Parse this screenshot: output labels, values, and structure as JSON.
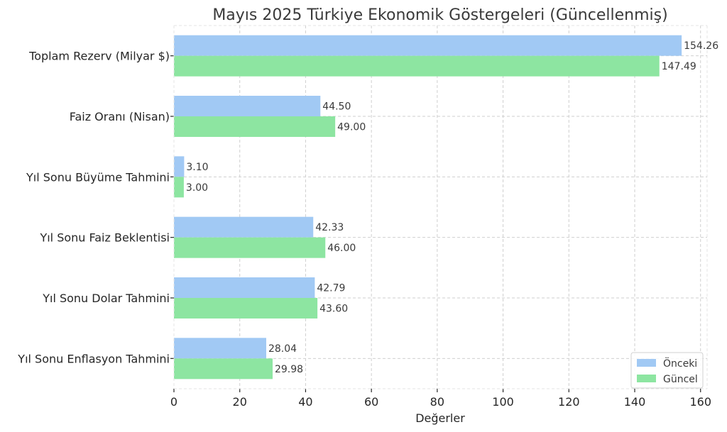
{
  "chart_data": {
    "type": "bar",
    "orientation": "horizontal",
    "title": "Mayıs 2025 Türkiye Ekonomik Göstergeleri (Güncellenmiş)",
    "xlabel": "Değerler",
    "ylabel": "",
    "categories": [
      "Toplam Rezerv (Milyar $)",
      "Faiz Oranı (Nisan)",
      "Yıl Sonu Büyüme Tahmini",
      "Yıl Sonu Faiz Beklentisi",
      "Yıl Sonu Dolar Tahmini",
      "Yıl Sonu Enflasyon Tahmini"
    ],
    "series": [
      {
        "name": "Önceki",
        "color": "#a1c9f4",
        "values": [
          154.26,
          44.5,
          3.1,
          42.33,
          42.79,
          28.04
        ],
        "labels": [
          "154.26",
          "44.50",
          "3.10",
          "42.33",
          "42.79",
          "28.04"
        ]
      },
      {
        "name": "Güncel",
        "color": "#8de5a1",
        "values": [
          147.49,
          49.0,
          3.0,
          46.0,
          43.6,
          29.98
        ],
        "labels": [
          "147.49",
          "49.00",
          "3.00",
          "46.00",
          "43.60",
          "29.98"
        ]
      }
    ],
    "xlim": [
      0,
      162
    ],
    "xticks": [
      0,
      20,
      40,
      60,
      80,
      100,
      120,
      140,
      160
    ],
    "grid": true,
    "legend_position": "bottom-right"
  }
}
